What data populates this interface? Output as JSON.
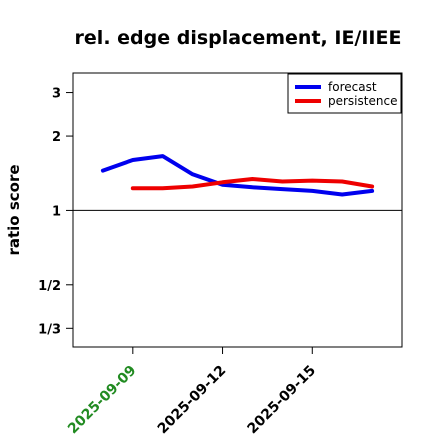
{
  "chart_data": {
    "type": "line",
    "title": "rel. edge displacement, IE/IIEE",
    "ylabel": "ratio score",
    "xlabel": "",
    "y_scale": "reciprocal-log",
    "ylim": [
      0.28,
      3.6
    ],
    "xlim": [
      "2025-09-07",
      "2025-09-18"
    ],
    "y_ticks": [
      {
        "value": 0.3333,
        "label": "1/3"
      },
      {
        "value": 0.5,
        "label": "1/2"
      },
      {
        "value": 1,
        "label": "1"
      },
      {
        "value": 2,
        "label": "2"
      },
      {
        "value": 3,
        "label": "3"
      }
    ],
    "x_ticks": [
      {
        "value": "2025-09-09",
        "label": "2025-09-09",
        "color": "#228b22"
      },
      {
        "value": "2025-09-12",
        "label": "2025-09-12",
        "color": "#000000"
      },
      {
        "value": "2025-09-15",
        "label": "2025-09-15",
        "color": "#000000"
      }
    ],
    "reference_line": 1,
    "grid": false,
    "legend_position": "top-right",
    "series": [
      {
        "name": "forecast",
        "color": "#0000ee",
        "x": [
          "2025-09-08",
          "2025-09-09",
          "2025-09-10",
          "2025-09-11",
          "2025-09-12",
          "2025-09-13",
          "2025-09-14",
          "2025-09-15",
          "2025-09-16",
          "2025-09-17"
        ],
        "y": [
          1.45,
          1.6,
          1.66,
          1.4,
          1.27,
          1.24,
          1.22,
          1.2,
          1.16,
          1.2
        ]
      },
      {
        "name": "persistence",
        "color": "#ee0000",
        "x": [
          "2025-09-09",
          "2025-09-10",
          "2025-09-11",
          "2025-09-12",
          "2025-09-13",
          "2025-09-14",
          "2025-09-15",
          "2025-09-16",
          "2025-09-17"
        ],
        "y": [
          1.23,
          1.23,
          1.25,
          1.3,
          1.34,
          1.31,
          1.32,
          1.31,
          1.25
        ]
      }
    ]
  }
}
